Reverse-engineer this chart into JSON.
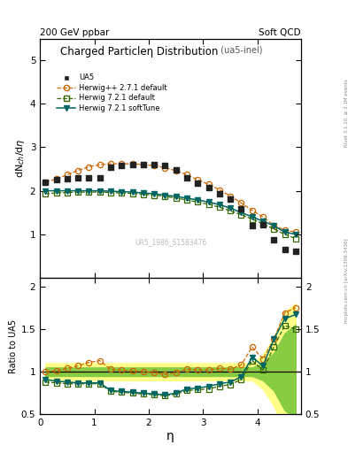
{
  "title": "Charged Particleη Distribution",
  "title_suffix": " (ua5-inel)",
  "header_left": "200 GeV ppbar",
  "header_right": "Soft QCD",
  "right_label": "mcplots.cern.ch [arXiv:1306.3436]",
  "right_label2": "Rivet 3.1.10, ≥ 3.1M events",
  "watermark": "UA5_1986_S1583476",
  "xlabel": "η",
  "ylabel_main": "dN$_{ch}$/dη",
  "ylabel_ratio": "Ratio to UA5",
  "ua5_eta": [
    0.1,
    0.3,
    0.5,
    0.7,
    0.9,
    1.1,
    1.3,
    1.5,
    1.7,
    1.9,
    2.1,
    2.3,
    2.5,
    2.7,
    2.9,
    3.1,
    3.3,
    3.5,
    3.7,
    3.9,
    4.1,
    4.3,
    4.5,
    4.7
  ],
  "ua5_val": [
    2.2,
    2.25,
    2.28,
    2.3,
    2.3,
    2.3,
    2.55,
    2.58,
    2.6,
    2.6,
    2.6,
    2.58,
    2.48,
    2.3,
    2.18,
    2.08,
    1.93,
    1.8,
    1.58,
    1.2,
    1.22,
    0.87,
    0.65,
    0.6
  ],
  "hpp_eta": [
    0.1,
    0.3,
    0.5,
    0.7,
    0.9,
    1.1,
    1.3,
    1.5,
    1.7,
    1.9,
    2.1,
    2.3,
    2.5,
    2.7,
    2.9,
    3.1,
    3.3,
    3.5,
    3.7,
    3.9,
    4.1,
    4.3,
    4.5,
    4.7
  ],
  "hpp_val": [
    2.2,
    2.27,
    2.37,
    2.47,
    2.55,
    2.6,
    2.62,
    2.62,
    2.62,
    2.6,
    2.58,
    2.53,
    2.46,
    2.37,
    2.25,
    2.15,
    2.02,
    1.88,
    1.72,
    1.55,
    1.4,
    1.2,
    1.1,
    1.05
  ],
  "h721_eta": [
    0.1,
    0.3,
    0.5,
    0.7,
    0.9,
    1.1,
    1.3,
    1.5,
    1.7,
    1.9,
    2.1,
    2.3,
    2.5,
    2.7,
    2.9,
    3.1,
    3.3,
    3.5,
    3.7,
    3.9,
    4.1,
    4.3,
    4.5,
    4.7
  ],
  "h721_val": [
    1.93,
    1.95,
    1.96,
    1.97,
    1.97,
    1.97,
    1.96,
    1.95,
    1.94,
    1.92,
    1.9,
    1.87,
    1.83,
    1.79,
    1.74,
    1.69,
    1.62,
    1.54,
    1.45,
    1.35,
    1.24,
    1.12,
    1.0,
    0.9
  ],
  "h721s_eta": [
    0.1,
    0.3,
    0.5,
    0.7,
    0.9,
    1.1,
    1.3,
    1.5,
    1.7,
    1.9,
    2.1,
    2.3,
    2.5,
    2.7,
    2.9,
    3.1,
    3.3,
    3.5,
    3.7,
    3.9,
    4.1,
    4.3,
    4.5,
    4.7
  ],
  "h721s_val": [
    2.0,
    2.0,
    2.0,
    2.0,
    2.0,
    2.0,
    1.99,
    1.98,
    1.97,
    1.95,
    1.93,
    1.9,
    1.87,
    1.83,
    1.79,
    1.74,
    1.68,
    1.6,
    1.5,
    1.4,
    1.3,
    1.2,
    1.05,
    1.0
  ],
  "ratio_hpp": [
    1.0,
    1.01,
    1.04,
    1.07,
    1.11,
    1.13,
    1.03,
    1.02,
    1.01,
    1.0,
    0.99,
    0.97,
    0.99,
    1.03,
    1.02,
    1.02,
    1.04,
    1.03,
    1.08,
    1.29,
    1.15,
    1.38,
    1.69,
    1.75
  ],
  "ratio_h721": [
    0.88,
    0.87,
    0.86,
    0.86,
    0.86,
    0.86,
    0.77,
    0.76,
    0.75,
    0.74,
    0.73,
    0.72,
    0.74,
    0.78,
    0.79,
    0.8,
    0.83,
    0.85,
    0.91,
    1.13,
    1.02,
    1.29,
    1.54,
    1.5
  ],
  "ratio_h721s": [
    0.91,
    0.89,
    0.88,
    0.87,
    0.87,
    0.87,
    0.78,
    0.77,
    0.76,
    0.75,
    0.74,
    0.73,
    0.75,
    0.8,
    0.81,
    0.83,
    0.86,
    0.88,
    0.94,
    1.17,
    1.07,
    1.38,
    1.62,
    1.67
  ],
  "band_yellow_lo": [
    0.9,
    0.9,
    0.9,
    0.9,
    0.9,
    0.9,
    0.9,
    0.9,
    0.9,
    0.9,
    0.9,
    0.9,
    0.9,
    0.9,
    0.9,
    0.9,
    0.9,
    0.9,
    0.9,
    0.9,
    0.8,
    0.6,
    0.3,
    0.2
  ],
  "band_yellow_hi": [
    1.1,
    1.1,
    1.1,
    1.1,
    1.1,
    1.1,
    1.1,
    1.1,
    1.1,
    1.1,
    1.1,
    1.1,
    1.1,
    1.1,
    1.1,
    1.1,
    1.1,
    1.1,
    1.1,
    1.1,
    1.2,
    1.4,
    1.7,
    1.8
  ],
  "band_green_lo": [
    0.95,
    0.95,
    0.95,
    0.95,
    0.95,
    0.95,
    0.95,
    0.95,
    0.95,
    0.95,
    0.95,
    0.95,
    0.95,
    0.95,
    0.95,
    0.95,
    0.95,
    0.95,
    0.95,
    0.95,
    0.9,
    0.78,
    0.55,
    0.45
  ],
  "band_green_hi": [
    1.05,
    1.05,
    1.05,
    1.05,
    1.05,
    1.05,
    1.05,
    1.05,
    1.05,
    1.05,
    1.05,
    1.05,
    1.05,
    1.05,
    1.05,
    1.05,
    1.05,
    1.05,
    1.05,
    1.05,
    1.1,
    1.22,
    1.45,
    1.55
  ],
  "color_ua5": "#222222",
  "color_hpp": "#cc6600",
  "color_h721": "#336600",
  "color_h721s": "#006666",
  "color_yellow": "#ffff88",
  "color_green": "#88cc44",
  "ylim_main": [
    0.0,
    5.5
  ],
  "ylim_ratio": [
    0.5,
    2.1
  ],
  "xlim": [
    0.0,
    4.8
  ],
  "yticks_main": [
    1,
    2,
    3,
    4,
    5
  ],
  "yticks_ratio": [
    0.5,
    1.0,
    1.5,
    2.0
  ],
  "xticks": [
    0,
    1,
    2,
    3,
    4
  ]
}
